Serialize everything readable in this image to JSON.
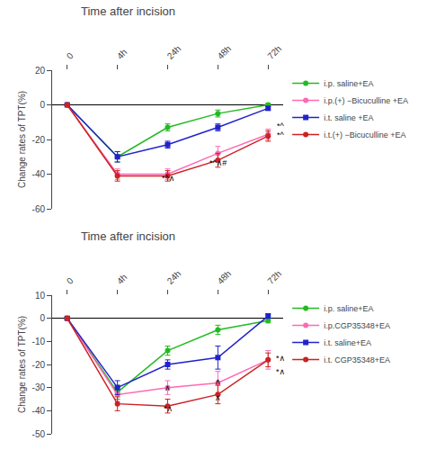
{
  "chart_data": [
    {
      "type": "line",
      "title": "Time after incision",
      "ylabel": "Change rates of TPT(%)",
      "x": [
        0,
        1,
        2,
        3,
        4
      ],
      "xlim": [
        -0.3,
        4.3
      ],
      "xticks": [
        0,
        {
          "value": 1,
          "label": "4h"
        },
        {
          "value": 2,
          "label": "24h"
        },
        {
          "value": 3,
          "label": "48h"
        },
        {
          "value": 4,
          "label": "72h"
        }
      ],
      "ylim": [
        -60,
        20
      ],
      "yticks": [
        -60,
        -40,
        -20,
        0,
        20
      ],
      "grid": false,
      "legend": "right",
      "series": [
        {
          "name": "i.p. saline+EA",
          "color": "#22bb22",
          "marker": "circle",
          "values": [
            0,
            -30,
            -13,
            -5,
            0
          ],
          "errors": [
            0.5,
            3,
            2,
            2,
            1
          ]
        },
        {
          "name": "i.p.(+) −Bicuculline +EA",
          "color": "#ff69b4",
          "marker": "circle",
          "values": [
            0,
            -40,
            -40,
            -28,
            -17
          ],
          "errors": [
            0.5,
            3,
            3,
            4,
            3
          ]
        },
        {
          "name": "i.t. saline +EA",
          "color": "#2222cc",
          "marker": "square",
          "values": [
            0,
            -30,
            -23,
            -13,
            -2
          ],
          "errors": [
            0.5,
            3,
            2,
            2,
            1
          ]
        },
        {
          "name": "i.t.(+) −Bicuculline +EA",
          "color": "#cc2222",
          "marker": "circle",
          "values": [
            0,
            -41,
            -41,
            -32,
            -18
          ],
          "errors": [
            0.5,
            3,
            3,
            4,
            3
          ]
        }
      ],
      "annotations": [
        {
          "x": 2.0,
          "y": -46,
          "text": "*^∧"
        },
        {
          "x": 3.0,
          "y": -37,
          "text": "*^∧#"
        },
        {
          "x": 4.25,
          "y": -16,
          "text": "*^"
        },
        {
          "x": 4.25,
          "y": -21,
          "text": "*^"
        }
      ]
    },
    {
      "type": "line",
      "title": "Time after incision",
      "ylabel": "Change rates of TPT(%)",
      "x": [
        0,
        1,
        2,
        3,
        4
      ],
      "xlim": [
        -0.3,
        4.3
      ],
      "xticks": [
        0,
        {
          "value": 1,
          "label": "4h"
        },
        {
          "value": 2,
          "label": "24h"
        },
        {
          "value": 3,
          "label": "48h"
        },
        {
          "value": 4,
          "label": "72h"
        }
      ],
      "ylim": [
        -50,
        10
      ],
      "yticks": [
        -50,
        -40,
        -30,
        -20,
        -10,
        0,
        10
      ],
      "grid": false,
      "legend": "right",
      "series": [
        {
          "name": "i.p. saline+EA",
          "color": "#22bb22",
          "marker": "circle",
          "values": [
            0,
            -32,
            -14,
            -5,
            -1
          ],
          "errors": [
            0.5,
            3,
            2,
            2,
            1
          ]
        },
        {
          "name": "i.p.CGP35348+EA",
          "color": "#ff69b4",
          "marker": "circle",
          "values": [
            0,
            -33,
            -30,
            -28,
            -18
          ],
          "errors": [
            0.5,
            3,
            3,
            5,
            4
          ]
        },
        {
          "name": "i.t. saline+EA",
          "color": "#2222cc",
          "marker": "square",
          "values": [
            0,
            -30,
            -20,
            -17,
            1
          ],
          "errors": [
            0.5,
            3,
            2,
            5,
            1
          ]
        },
        {
          "name": "i.t. CGP35348+EA",
          "color": "#cc2222",
          "marker": "circle",
          "values": [
            0,
            -37,
            -38,
            -33,
            -18
          ],
          "errors": [
            0.5,
            3,
            3,
            4,
            3
          ]
        }
      ],
      "annotations": [
        {
          "x": 2.0,
          "y": -42,
          "text": "*∧"
        },
        {
          "x": 2.0,
          "y": -33,
          "text": "∧"
        },
        {
          "x": 3.0,
          "y": -37,
          "text": "∧"
        },
        {
          "x": 3.0,
          "y": -30,
          "text": "∧"
        },
        {
          "x": 4.25,
          "y": -20,
          "text": "*∧"
        },
        {
          "x": 4.25,
          "y": -26,
          "text": "*∧"
        }
      ]
    }
  ]
}
